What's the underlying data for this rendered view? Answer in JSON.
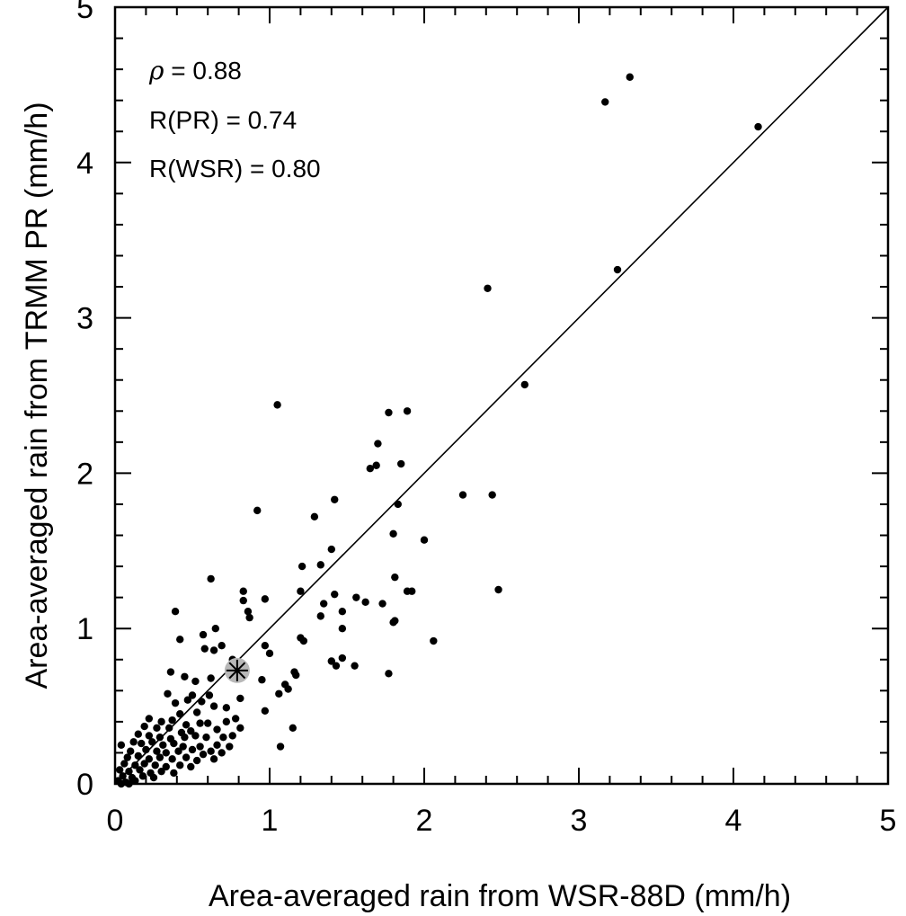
{
  "chart_data": {
    "type": "scatter",
    "title": "",
    "xlabel": "Area-averaged rain from WSR-88D (mm/h)",
    "ylabel": "Area-averaged rain from TRMM PR (mm/h)",
    "xlim": [
      0,
      5
    ],
    "ylim": [
      0,
      5
    ],
    "xticks": [
      0,
      1,
      2,
      3,
      4,
      5
    ],
    "yticks": [
      0,
      1,
      2,
      3,
      4,
      5
    ],
    "xtick_labels": [
      "0",
      "1",
      "2",
      "3",
      "4",
      "5"
    ],
    "ytick_labels": [
      "0",
      "1",
      "2",
      "3",
      "4",
      "5"
    ],
    "grid": false,
    "reference_line": {
      "type": "1:1",
      "from": [
        0,
        0
      ],
      "to": [
        5,
        5
      ]
    },
    "annotations": {
      "rho_symbol": "ρ",
      "rho_rest": " = 0.88",
      "r_pr": "R(PR) = 0.74",
      "r_wsr": "R(WSR) = 0.80"
    },
    "mean_marker": {
      "x": 0.79,
      "y": 0.73,
      "symbol": "asterisk"
    },
    "points": [
      [
        3.33,
        4.55
      ],
      [
        3.17,
        4.39
      ],
      [
        4.16,
        4.23
      ],
      [
        3.25,
        3.31
      ],
      [
        2.41,
        3.19
      ],
      [
        2.65,
        2.57
      ],
      [
        1.05,
        2.44
      ],
      [
        1.77,
        2.39
      ],
      [
        1.89,
        2.4
      ],
      [
        1.7,
        2.19
      ],
      [
        1.65,
        2.03
      ],
      [
        1.69,
        2.05
      ],
      [
        1.85,
        2.06
      ],
      [
        2.25,
        1.86
      ],
      [
        2.44,
        1.86
      ],
      [
        1.42,
        1.83
      ],
      [
        1.83,
        1.8
      ],
      [
        0.92,
        1.76
      ],
      [
        1.29,
        1.72
      ],
      [
        1.8,
        1.61
      ],
      [
        2.0,
        1.57
      ],
      [
        1.4,
        1.51
      ],
      [
        1.33,
        1.41
      ],
      [
        1.21,
        1.4
      ],
      [
        0.62,
        1.32
      ],
      [
        1.81,
        1.33
      ],
      [
        2.48,
        1.25
      ],
      [
        1.2,
        1.24
      ],
      [
        0.83,
        1.24
      ],
      [
        1.89,
        1.24
      ],
      [
        1.92,
        1.24
      ],
      [
        1.42,
        1.22
      ],
      [
        1.56,
        1.2
      ],
      [
        0.97,
        1.19
      ],
      [
        0.83,
        1.18
      ],
      [
        1.62,
        1.17
      ],
      [
        1.73,
        1.16
      ],
      [
        1.35,
        1.16
      ],
      [
        0.39,
        1.11
      ],
      [
        0.86,
        1.11
      ],
      [
        1.47,
        1.11
      ],
      [
        0.87,
        1.07
      ],
      [
        1.33,
        1.08
      ],
      [
        1.81,
        1.05
      ],
      [
        1.8,
        1.04
      ],
      [
        0.65,
        1.0
      ],
      [
        1.47,
        1.0
      ],
      [
        0.57,
        0.96
      ],
      [
        0.42,
        0.93
      ],
      [
        1.2,
        0.94
      ],
      [
        1.22,
        0.92
      ],
      [
        2.06,
        0.92
      ],
      [
        0.97,
        0.89
      ],
      [
        0.69,
        0.89
      ],
      [
        0.58,
        0.87
      ],
      [
        0.64,
        0.86
      ],
      [
        1.0,
        0.84
      ],
      [
        0.76,
        0.8
      ],
      [
        1.4,
        0.79
      ],
      [
        1.47,
        0.81
      ],
      [
        1.55,
        0.76
      ],
      [
        1.43,
        0.76
      ],
      [
        1.77,
        0.71
      ],
      [
        0.36,
        0.72
      ],
      [
        0.45,
        0.69
      ],
      [
        1.17,
        0.7
      ],
      [
        1.16,
        0.72
      ],
      [
        0.52,
        0.66
      ],
      [
        0.62,
        0.68
      ],
      [
        0.95,
        0.67
      ],
      [
        1.1,
        0.64
      ],
      [
        1.12,
        0.61
      ],
      [
        0.34,
        0.58
      ],
      [
        0.5,
        0.57
      ],
      [
        0.61,
        0.57
      ],
      [
        1.06,
        0.58
      ],
      [
        0.47,
        0.54
      ],
      [
        0.39,
        0.52
      ],
      [
        0.56,
        0.53
      ],
      [
        0.81,
        0.55
      ],
      [
        0.64,
        0.5
      ],
      [
        0.72,
        0.49
      ],
      [
        0.97,
        0.47
      ],
      [
        0.42,
        0.45
      ],
      [
        0.53,
        0.46
      ],
      [
        0.22,
        0.42
      ],
      [
        0.3,
        0.4
      ],
      [
        0.37,
        0.41
      ],
      [
        0.46,
        0.38
      ],
      [
        0.55,
        0.39
      ],
      [
        0.6,
        0.39
      ],
      [
        0.72,
        0.4
      ],
      [
        0.78,
        0.42
      ],
      [
        0.19,
        0.37
      ],
      [
        0.27,
        0.36
      ],
      [
        0.35,
        0.36
      ],
      [
        0.43,
        0.33
      ],
      [
        0.49,
        0.34
      ],
      [
        0.66,
        0.35
      ],
      [
        0.81,
        0.36
      ],
      [
        1.15,
        0.36
      ],
      [
        0.15,
        0.32
      ],
      [
        0.22,
        0.31
      ],
      [
        0.29,
        0.3
      ],
      [
        0.36,
        0.29
      ],
      [
        0.45,
        0.3
      ],
      [
        0.52,
        0.31
      ],
      [
        0.59,
        0.3
      ],
      [
        0.7,
        0.3
      ],
      [
        0.76,
        0.31
      ],
      [
        0.12,
        0.27
      ],
      [
        0.17,
        0.26
      ],
      [
        0.24,
        0.27
      ],
      [
        0.31,
        0.25
      ],
      [
        0.38,
        0.26
      ],
      [
        0.44,
        0.24
      ],
      [
        0.55,
        0.24
      ],
      [
        0.66,
        0.25
      ],
      [
        0.74,
        0.24
      ],
      [
        0.04,
        0.25
      ],
      [
        1.07,
        0.24
      ],
      [
        0.1,
        0.21
      ],
      [
        0.2,
        0.22
      ],
      [
        0.27,
        0.21
      ],
      [
        0.33,
        0.2
      ],
      [
        0.41,
        0.21
      ],
      [
        0.5,
        0.22
      ],
      [
        0.62,
        0.21
      ],
      [
        0.69,
        0.2
      ],
      [
        0.08,
        0.17
      ],
      [
        0.15,
        0.18
      ],
      [
        0.22,
        0.16
      ],
      [
        0.29,
        0.17
      ],
      [
        0.37,
        0.16
      ],
      [
        0.46,
        0.17
      ],
      [
        0.53,
        0.15
      ],
      [
        0.64,
        0.16
      ],
      [
        0.06,
        0.13
      ],
      [
        0.13,
        0.12
      ],
      [
        0.19,
        0.13
      ],
      [
        0.26,
        0.12
      ],
      [
        0.33,
        0.11
      ],
      [
        0.42,
        0.12
      ],
      [
        0.49,
        0.11
      ],
      [
        0.03,
        0.09
      ],
      [
        0.09,
        0.08
      ],
      [
        0.16,
        0.09
      ],
      [
        0.23,
        0.07
      ],
      [
        0.3,
        0.08
      ],
      [
        0.38,
        0.07
      ],
      [
        0.05,
        0.05
      ],
      [
        0.11,
        0.04
      ],
      [
        0.18,
        0.05
      ],
      [
        0.25,
        0.04
      ],
      [
        0.02,
        0.02
      ],
      [
        0.07,
        0.01
      ],
      [
        0.13,
        0.02
      ],
      [
        0.04,
        0.0
      ],
      [
        0.09,
        0.0
      ],
      [
        0.57,
        0.19
      ]
    ]
  }
}
